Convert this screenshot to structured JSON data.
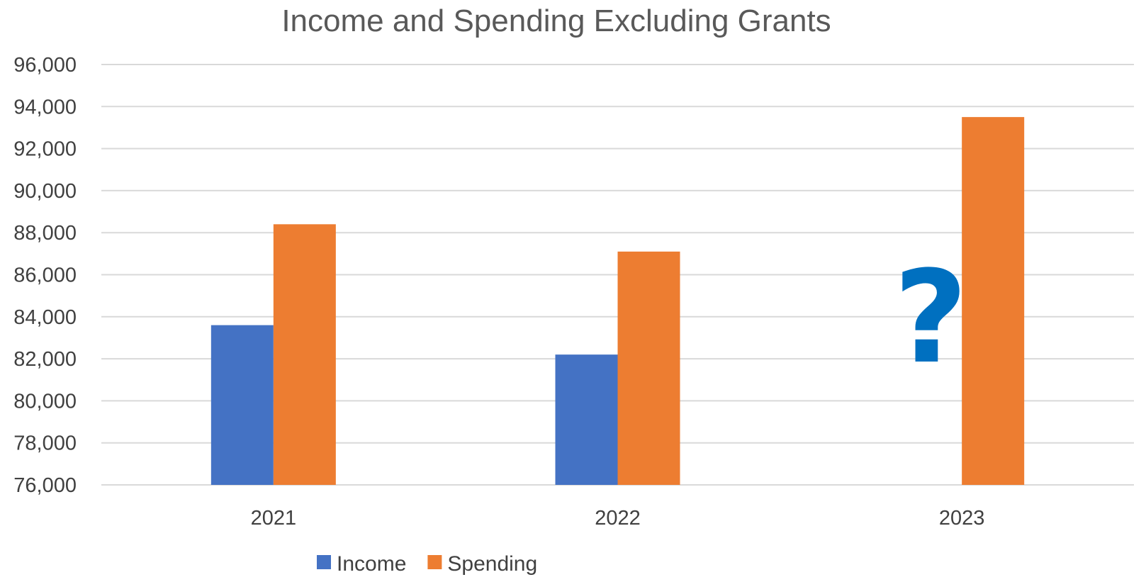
{
  "chart_data": {
    "type": "bar",
    "title": "Income and Spending Excluding Grants",
    "xlabel": "",
    "ylabel": "",
    "categories": [
      "2021",
      "2022",
      "2023"
    ],
    "series": [
      {
        "name": "Income",
        "color": "#4472C4",
        "values": [
          83600,
          82200,
          null
        ]
      },
      {
        "name": "Spending",
        "color": "#ED7D31",
        "values": [
          88400,
          87100,
          93500
        ]
      }
    ],
    "ylim": [
      76000,
      96000
    ],
    "yticks": [
      "76,000",
      "78,000",
      "80,000",
      "82,000",
      "84,000",
      "86,000",
      "88,000",
      "90,000",
      "92,000",
      "94,000",
      "96,000"
    ],
    "grid": true,
    "legend": "bottom",
    "annotation": {
      "text": "?",
      "color": "#0070C0",
      "category": "2023",
      "series": "Income"
    }
  }
}
